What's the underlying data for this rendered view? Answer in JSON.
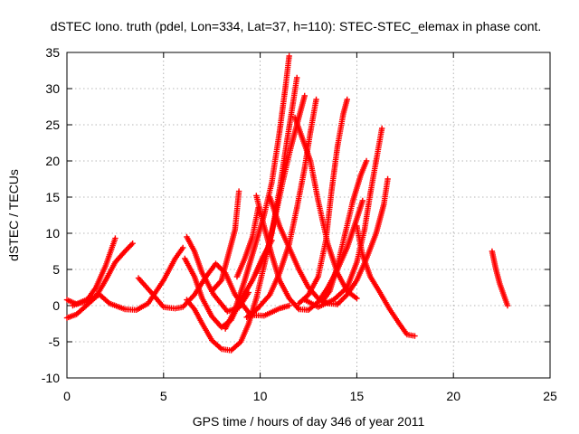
{
  "chart_data": {
    "type": "scatter",
    "title": "dSTEC Iono. truth (pdel, Lon=334, Lat=37, h=110): STEC-STEC_elemax in phase cont.",
    "xlabel": "GPS time / hours of day 346 of year 2011",
    "ylabel": "dSTEC  / TECUs",
    "xlim": [
      0,
      25
    ],
    "ylim": [
      -10,
      35
    ],
    "xticks": [
      "0",
      "5",
      "10",
      "15",
      "20",
      "25"
    ],
    "yticks": [
      "-10",
      "-5",
      "0",
      "5",
      "10",
      "15",
      "20",
      "25",
      "30",
      "35"
    ],
    "grid": true,
    "marker": "+",
    "color": "#ff0000",
    "series": [
      {
        "points": [
          [
            0.0,
            0.8
          ],
          [
            0.5,
            0.2
          ],
          [
            1.0,
            0.6
          ],
          [
            1.5,
            2.5
          ],
          [
            2.0,
            5.5
          ],
          [
            2.5,
            9.3
          ]
        ]
      },
      {
        "points": [
          [
            0.0,
            -1.7
          ],
          [
            0.5,
            -1.2
          ],
          [
            1.0,
            0.0
          ],
          [
            1.5,
            1.2
          ],
          [
            2.0,
            3.5
          ],
          [
            2.5,
            6.0
          ],
          [
            3.0,
            7.5
          ],
          [
            3.4,
            8.6
          ]
        ]
      },
      {
        "points": [
          [
            0.3,
            0.0
          ],
          [
            1.0,
            0.8
          ],
          [
            1.7,
            1.5
          ],
          [
            2.2,
            0.3
          ],
          [
            3.0,
            -0.5
          ],
          [
            3.6,
            -0.6
          ],
          [
            4.2,
            0.3
          ],
          [
            5.0,
            3.5
          ],
          [
            5.6,
            6.5
          ],
          [
            6.0,
            8.0
          ]
        ]
      },
      {
        "points": [
          [
            3.7,
            3.8
          ],
          [
            4.3,
            2.0
          ],
          [
            5.0,
            -0.2
          ],
          [
            5.6,
            -0.4
          ],
          [
            6.0,
            -0.2
          ],
          [
            6.6,
            1.5
          ],
          [
            7.2,
            4.0
          ],
          [
            7.7,
            5.8
          ],
          [
            8.2,
            4.5
          ],
          [
            8.7,
            1.5
          ],
          [
            9.5,
            -1.3
          ],
          [
            10.2,
            -1.4
          ],
          [
            11.0,
            -0.4
          ],
          [
            11.5,
            0.0
          ]
        ]
      },
      {
        "points": [
          [
            6.2,
            9.5
          ],
          [
            6.6,
            7.5
          ],
          [
            7.0,
            4.5
          ],
          [
            7.6,
            1.5
          ],
          [
            8.3,
            -0.8
          ],
          [
            8.9,
            -0.3
          ],
          [
            9.4,
            1.8
          ]
        ]
      },
      {
        "points": [
          [
            6.1,
            6.5
          ],
          [
            6.6,
            4.0
          ],
          [
            7.0,
            1.0
          ],
          [
            7.5,
            -1.5
          ],
          [
            8.0,
            -3.0
          ],
          [
            8.5,
            -2.0
          ],
          [
            9.0,
            0.8
          ],
          [
            9.6,
            3.5
          ],
          [
            10.1,
            6.5
          ],
          [
            10.6,
            9.0
          ]
        ]
      },
      {
        "points": [
          [
            6.2,
            0.8
          ],
          [
            6.6,
            -0.5
          ],
          [
            7.0,
            -2.5
          ],
          [
            7.5,
            -4.8
          ],
          [
            8.0,
            -6.0
          ],
          [
            8.5,
            -6.2
          ],
          [
            9.0,
            -5.0
          ],
          [
            9.4,
            -2.5
          ],
          [
            9.8,
            1.0
          ],
          [
            10.2,
            5.5
          ],
          [
            10.6,
            10.0
          ],
          [
            11.0,
            16.0
          ],
          [
            11.4,
            23.0
          ],
          [
            11.7,
            28.0
          ],
          [
            11.9,
            31.5
          ]
        ]
      },
      {
        "points": [
          [
            8.2,
            -3.2
          ],
          [
            8.7,
            -0.5
          ],
          [
            9.2,
            3.5
          ],
          [
            9.7,
            8.0
          ],
          [
            10.2,
            12.5
          ],
          [
            10.6,
            17.0
          ],
          [
            11.0,
            24.0
          ],
          [
            11.3,
            30.0
          ],
          [
            11.5,
            34.5
          ]
        ]
      },
      {
        "points": [
          [
            7.5,
            2.0
          ],
          [
            8.0,
            3.5
          ],
          [
            8.4,
            7.5
          ],
          [
            8.7,
            10.5
          ],
          [
            8.9,
            15.8
          ]
        ]
      },
      {
        "points": [
          [
            8.8,
            4.0
          ],
          [
            9.2,
            6.5
          ],
          [
            9.6,
            9.5
          ],
          [
            9.9,
            13.5
          ]
        ]
      },
      {
        "points": [
          [
            9.8,
            15.2
          ],
          [
            10.2,
            11.0
          ],
          [
            10.6,
            7.0
          ],
          [
            11.0,
            3.5
          ],
          [
            11.5,
            1.0
          ],
          [
            12.0,
            -0.5
          ],
          [
            12.5,
            -0.6
          ],
          [
            13.0,
            0.5
          ],
          [
            13.5,
            2.5
          ],
          [
            14.0,
            5.0
          ],
          [
            14.5,
            8.0
          ],
          [
            15.0,
            12.0
          ],
          [
            15.3,
            14.5
          ]
        ]
      },
      {
        "points": [
          [
            10.5,
            15.0
          ],
          [
            11.0,
            11.0
          ],
          [
            11.5,
            8.0
          ],
          [
            12.0,
            5.0
          ],
          [
            12.5,
            2.5
          ],
          [
            13.0,
            1.0
          ],
          [
            13.5,
            0.3
          ],
          [
            14.0,
            0.2
          ]
        ]
      },
      {
        "points": [
          [
            9.8,
            4.5
          ],
          [
            10.4,
            8.0
          ],
          [
            10.8,
            12.5
          ],
          [
            11.2,
            17.5
          ],
          [
            11.6,
            22.0
          ],
          [
            12.0,
            26.0
          ],
          [
            12.3,
            29.0
          ]
        ]
      },
      {
        "points": [
          [
            9.3,
            -1.6
          ],
          [
            9.8,
            -0.6
          ],
          [
            10.5,
            1.5
          ],
          [
            11.0,
            4.5
          ],
          [
            11.5,
            8.5
          ],
          [
            11.9,
            13.5
          ],
          [
            12.3,
            19.0
          ],
          [
            12.6,
            24.0
          ],
          [
            12.9,
            28.5
          ]
        ]
      },
      {
        "points": [
          [
            11.8,
            26.0
          ],
          [
            12.2,
            23.0
          ],
          [
            12.6,
            20.0
          ],
          [
            13.0,
            14.5
          ],
          [
            13.5,
            8.5
          ],
          [
            14.0,
            4.5
          ],
          [
            14.5,
            2.0
          ],
          [
            15.0,
            1.0
          ]
        ]
      },
      {
        "points": [
          [
            12.0,
            0.3
          ],
          [
            12.5,
            1.5
          ],
          [
            13.0,
            4.0
          ],
          [
            13.4,
            9.0
          ],
          [
            13.7,
            16.0
          ],
          [
            14.0,
            22.0
          ],
          [
            14.3,
            26.5
          ],
          [
            14.5,
            28.5
          ]
        ]
      },
      {
        "points": [
          [
            13.2,
            0.5
          ],
          [
            13.6,
            2.0
          ],
          [
            14.0,
            5.5
          ],
          [
            14.4,
            10.0
          ],
          [
            14.8,
            14.5
          ],
          [
            15.2,
            18.0
          ],
          [
            15.5,
            20.0
          ]
        ]
      },
      {
        "points": [
          [
            12.3,
            0.8
          ],
          [
            13.0,
            -0.2
          ],
          [
            13.8,
            0.8
          ],
          [
            14.5,
            2.5
          ],
          [
            15.0,
            6.0
          ],
          [
            15.4,
            10.5
          ],
          [
            15.7,
            15.5
          ],
          [
            16.0,
            20.0
          ],
          [
            16.3,
            24.5
          ]
        ]
      },
      {
        "points": [
          [
            14.0,
            0.2
          ],
          [
            14.5,
            1.5
          ],
          [
            15.0,
            3.5
          ],
          [
            15.5,
            6.5
          ],
          [
            16.0,
            10.0
          ],
          [
            16.4,
            14.0
          ],
          [
            16.6,
            17.5
          ]
        ]
      },
      {
        "points": [
          [
            15.0,
            11.0
          ],
          [
            15.3,
            7.0
          ],
          [
            15.7,
            4.0
          ],
          [
            16.2,
            1.8
          ],
          [
            16.7,
            -0.5
          ],
          [
            17.2,
            -2.5
          ],
          [
            17.6,
            -4.0
          ],
          [
            18.0,
            -4.2
          ]
        ]
      },
      {
        "points": [
          [
            22.0,
            7.5
          ],
          [
            22.2,
            5.0
          ],
          [
            22.4,
            3.0
          ],
          [
            22.6,
            1.5
          ],
          [
            22.8,
            0.0
          ]
        ]
      }
    ]
  }
}
